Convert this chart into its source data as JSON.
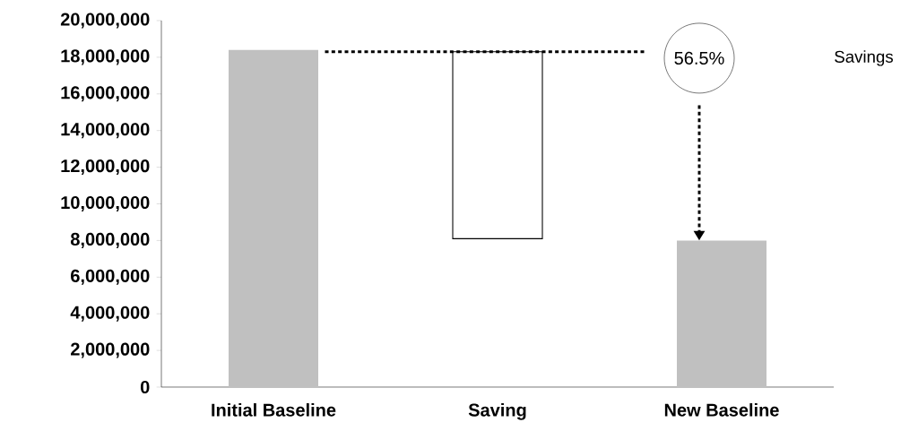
{
  "chart_data": {
    "type": "bar",
    "categories": [
      "Initial Baseline",
      "Saving",
      "New Baseline"
    ],
    "values": [
      18400000,
      10200000,
      8000000
    ],
    "base": [
      0,
      8100000,
      0
    ],
    "colors": [
      "#c0c0c0",
      "#ffffff",
      "#c0c0c0"
    ],
    "ylim": [
      0,
      20000000
    ],
    "yticks": [
      {
        "value": 0,
        "label": "0"
      },
      {
        "value": 2000000,
        "label": "2,000,000"
      },
      {
        "value": 4000000,
        "label": "4,000,000"
      },
      {
        "value": 6000000,
        "label": "6,000,000"
      },
      {
        "value": 8000000,
        "label": "8,000,000"
      },
      {
        "value": 10000000,
        "label": "10,000,000"
      },
      {
        "value": 12000000,
        "label": "12,000,000"
      },
      {
        "value": 14000000,
        "label": "14,000,000"
      },
      {
        "value": 16000000,
        "label": "16,000,000"
      },
      {
        "value": 18000000,
        "label": "18,000,000"
      },
      {
        "value": 20000000,
        "label": "20,000,000"
      }
    ],
    "annotations": [
      "56.5%",
      "Savings"
    ],
    "ref_lines": [
      {
        "axis": "y",
        "value": 18300000,
        "color": "#000000",
        "line_style": "dotted"
      }
    ],
    "grid": false
  }
}
